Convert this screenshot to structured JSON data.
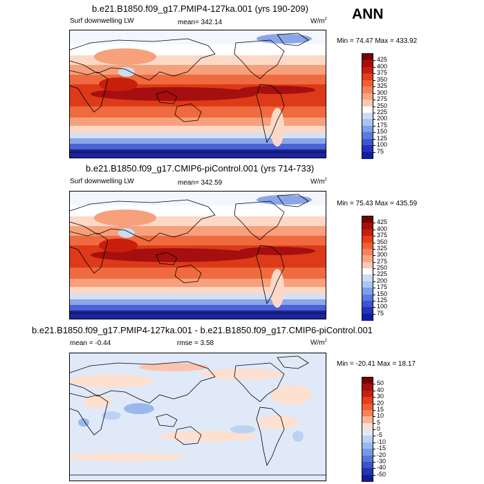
{
  "season": "ANN",
  "panels": [
    {
      "title": "b.e21.B1850.f09_g17.PMIP4-127ka.001 (yrs 190-209)",
      "left_label": "Surf downwelling LW",
      "center_label": "mean= 342.14",
      "units_main": "W/m",
      "units_exp": "2",
      "minmax": "Min =  74.47 Max = 433.92",
      "colorbar": {
        "labels": [
          "425",
          "400",
          "375",
          "350",
          "325",
          "300",
          "275",
          "250",
          "225",
          "200",
          "175",
          "150",
          "125",
          "100",
          "75"
        ],
        "colors": [
          "#7a0000",
          "#a50f0f",
          "#c81e0c",
          "#e0401a",
          "#ef6030",
          "#f5825a",
          "#f9a584",
          "#fcc8ae",
          "#ffffff",
          "#cbdcf5",
          "#a8c4f0",
          "#7f9fe8",
          "#5a7bdd",
          "#3d55cf",
          "#2532bd",
          "#121d9a"
        ]
      }
    },
    {
      "title": "b.e21.B1850.f09_g17.CMIP6-piControl.001 (yrs 714-733)",
      "left_label": "Surf downwelling LW",
      "center_label": "mean= 342.59",
      "units_main": "W/m",
      "units_exp": "2",
      "minmax": "Min =  75.43 Max = 435.59",
      "colorbar": {
        "labels": [
          "425",
          "400",
          "375",
          "350",
          "325",
          "300",
          "275",
          "250",
          "225",
          "200",
          "175",
          "150",
          "125",
          "100",
          "75"
        ],
        "colors": [
          "#7a0000",
          "#a50f0f",
          "#c81e0c",
          "#e0401a",
          "#ef6030",
          "#f5825a",
          "#f9a584",
          "#fcc8ae",
          "#ffffff",
          "#cbdcf5",
          "#a8c4f0",
          "#7f9fe8",
          "#5a7bdd",
          "#3d55cf",
          "#2532bd",
          "#121d9a"
        ]
      }
    },
    {
      "title": "b.e21.B1850.f09_g17.PMIP4-127ka.001 - b.e21.B1850.f09_g17.CMIP6-piControl.001",
      "left_label": "mean =  -0.44",
      "center_label": "rmse =   3.58",
      "units_main": "W/m",
      "units_exp": "2",
      "minmax": "Min = -20.41 Max =  18.17",
      "colorbar": {
        "labels": [
          "50",
          "40",
          "30",
          "20",
          "15",
          "10",
          "5",
          "0",
          "-5",
          "-10",
          "-15",
          "-20",
          "-30",
          "-40",
          "-50"
        ],
        "colors": [
          "#7a0000",
          "#a50f0f",
          "#c81e0c",
          "#e0401a",
          "#ef6030",
          "#f5825a",
          "#f9b596",
          "#fde0d0",
          "#dfe9f8",
          "#bcd2f3",
          "#9ab8ee",
          "#7799e4",
          "#5577d8",
          "#3a55c8",
          "#2233b3",
          "#111d8f"
        ]
      }
    }
  ]
}
